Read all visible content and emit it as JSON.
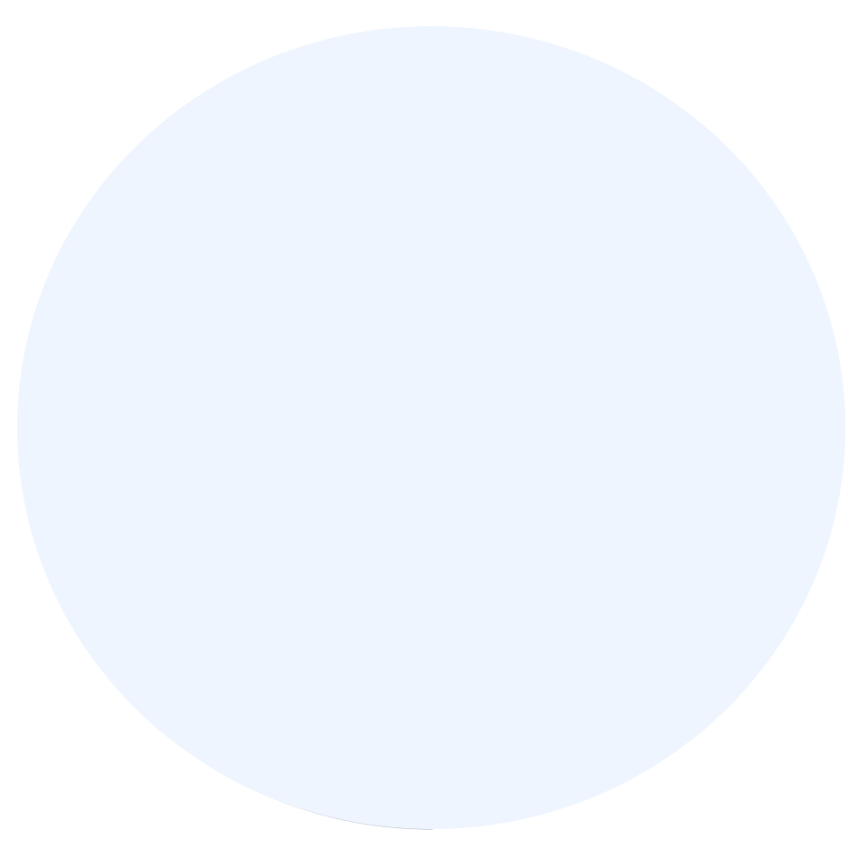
{
  "shape": {
    "kind": "circle",
    "fill_color": "#eef5fe",
    "stroke_color": "#6b7285"
  }
}
